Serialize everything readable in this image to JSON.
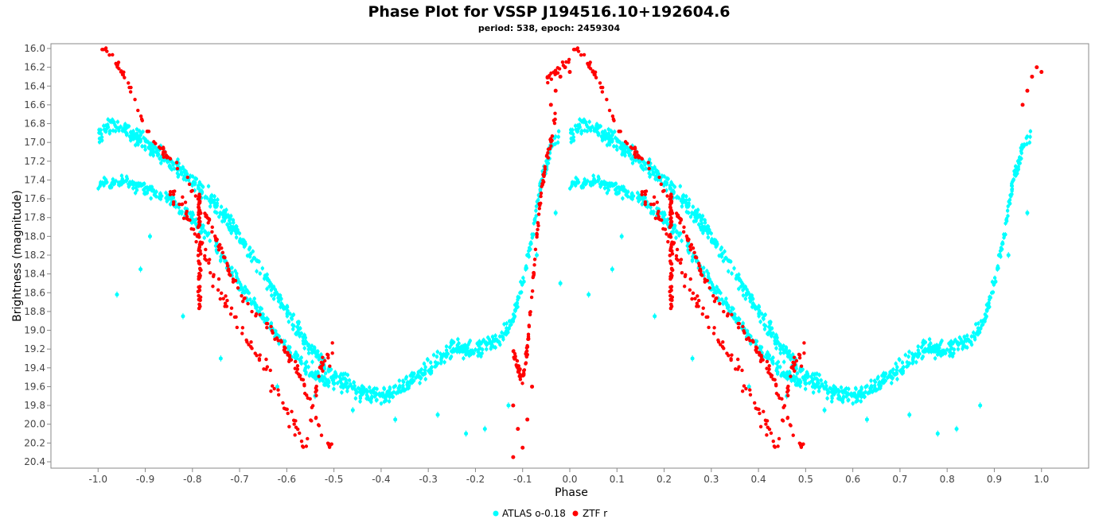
{
  "chart_data": {
    "type": "scatter",
    "title": "Phase Plot for VSSP J194516.10+192604.6",
    "subtitle": "period: 538, epoch: 2459304",
    "xlabel": "Phase",
    "ylabel": "Brightness (magnitude)",
    "xlim": [
      -1.1,
      1.1
    ],
    "ylim": [
      20.4,
      16.0
    ],
    "y_inverted": true,
    "x_ticks": [
      "-1.0",
      "-0.9",
      "-0.8",
      "-0.7",
      "-0.6",
      "-0.5",
      "-0.4",
      "-0.3",
      "-0.2",
      "-0.1",
      "0.0",
      "0.1",
      "0.2",
      "0.3",
      "0.4",
      "0.5",
      "0.6",
      "0.7",
      "0.8",
      "0.9",
      "1.0"
    ],
    "y_ticks": [
      "16.0",
      "16.2",
      "16.4",
      "16.6",
      "16.8",
      "17.0",
      "17.2",
      "17.4",
      "17.6",
      "17.8",
      "18.0",
      "18.2",
      "18.4",
      "18.6",
      "18.8",
      "19.0",
      "19.2",
      "19.4",
      "19.6",
      "19.8",
      "20.0",
      "20.2",
      "20.4"
    ],
    "grid": false,
    "legend_position": "bottom-center",
    "series": [
      {
        "name": "ATLAS o-0.18",
        "color": "#00ffff",
        "marker": "circle",
        "upper_branch": [
          [
            0.0,
            16.95
          ],
          [
            0.03,
            16.8
          ],
          [
            0.07,
            16.9
          ],
          [
            0.1,
            17.0
          ],
          [
            0.15,
            17.2
          ],
          [
            0.2,
            17.4
          ],
          [
            0.25,
            17.65
          ],
          [
            0.3,
            18.0
          ],
          [
            0.35,
            18.4
          ],
          [
            0.4,
            18.8
          ],
          [
            0.45,
            19.2
          ],
          [
            0.5,
            19.5
          ],
          [
            0.55,
            19.65
          ],
          [
            0.6,
            19.7
          ],
          [
            0.65,
            19.6
          ],
          [
            0.7,
            19.4
          ],
          [
            0.75,
            19.2
          ],
          [
            0.8,
            19.2
          ],
          [
            0.85,
            19.1
          ],
          [
            0.88,
            18.9
          ],
          [
            0.9,
            18.5
          ],
          [
            0.92,
            18.0
          ],
          [
            0.94,
            17.4
          ],
          [
            0.96,
            17.05
          ],
          [
            0.98,
            16.9
          ]
        ],
        "lower_branch": [
          [
            0.0,
            17.45
          ],
          [
            0.05,
            17.42
          ],
          [
            0.1,
            17.5
          ],
          [
            0.15,
            17.6
          ],
          [
            0.2,
            17.8
          ],
          [
            0.25,
            18.1
          ],
          [
            0.3,
            18.5
          ],
          [
            0.35,
            18.85
          ],
          [
            0.4,
            19.2
          ],
          [
            0.45,
            19.45
          ],
          [
            0.5,
            19.6
          ]
        ],
        "outliers": [
          [
            0.09,
            18.35
          ],
          [
            0.11,
            18.0
          ],
          [
            -0.02,
            18.5
          ],
          [
            0.04,
            18.62
          ],
          [
            0.18,
            18.85
          ],
          [
            0.26,
            19.3
          ],
          [
            0.38,
            19.6
          ],
          [
            0.46,
            19.7
          ],
          [
            0.54,
            19.85
          ],
          [
            0.63,
            19.95
          ],
          [
            0.72,
            19.9
          ],
          [
            0.78,
            20.1
          ],
          [
            0.82,
            20.05
          ],
          [
            0.87,
            19.8
          ],
          [
            0.93,
            18.2
          ],
          [
            0.97,
            17.75
          ]
        ]
      },
      {
        "name": "ZTF r",
        "color": "#ff0000",
        "marker": "circle",
        "main_branch": [
          [
            -0.05,
            16.35
          ],
          [
            -0.03,
            16.25
          ],
          [
            0.0,
            16.1
          ],
          [
            0.02,
            16.0
          ],
          [
            0.04,
            16.15
          ],
          [
            0.07,
            16.45
          ],
          [
            0.1,
            16.85
          ],
          [
            0.13,
            17.05
          ],
          [
            0.16,
            17.2
          ],
          [
            0.19,
            17.4
          ],
          [
            0.21,
            17.6
          ],
          [
            0.23,
            17.8
          ],
          [
            0.26,
            18.15
          ],
          [
            0.29,
            18.5
          ],
          [
            0.32,
            18.75
          ],
          [
            0.36,
            18.95
          ],
          [
            0.4,
            19.25
          ],
          [
            0.43,
            19.5
          ],
          [
            0.46,
            19.9
          ],
          [
            0.48,
            20.2
          ],
          [
            0.5,
            20.25
          ]
        ],
        "scatter_branch": [
          [
            0.15,
            17.5
          ],
          [
            0.18,
            17.7
          ],
          [
            0.22,
            18.05
          ],
          [
            0.24,
            18.4
          ],
          [
            0.27,
            18.7
          ],
          [
            0.3,
            18.9
          ],
          [
            0.33,
            19.2
          ],
          [
            0.36,
            19.45
          ],
          [
            0.38,
            19.7
          ],
          [
            0.41,
            19.95
          ],
          [
            0.44,
            20.3
          ],
          [
            0.47,
            19.4
          ],
          [
            0.5,
            19.2
          ]
        ],
        "vertical_column": {
          "x": 0.215,
          "y_range": [
            17.55,
            18.8
          ]
        },
        "rise_branch": [
          [
            -0.12,
            19.25
          ],
          [
            -0.1,
            19.55
          ],
          [
            -0.09,
            19.2
          ],
          [
            -0.08,
            18.6
          ],
          [
            -0.07,
            18.0
          ],
          [
            -0.06,
            17.5
          ],
          [
            -0.05,
            17.2
          ],
          [
            -0.04,
            17.0
          ],
          [
            -0.03,
            16.7
          ]
        ],
        "deep_points": [
          [
            -0.12,
            19.8
          ],
          [
            -0.11,
            20.05
          ],
          [
            -0.1,
            20.25
          ],
          [
            -0.09,
            19.95
          ],
          [
            -0.12,
            20.35
          ],
          [
            -0.08,
            19.6
          ]
        ],
        "top_right": [
          [
            0.96,
            16.6
          ],
          [
            0.97,
            16.45
          ],
          [
            0.98,
            16.3
          ],
          [
            0.99,
            16.2
          ],
          [
            1.0,
            16.25
          ]
        ]
      }
    ],
    "legend": [
      {
        "label": "ATLAS o-0.18",
        "color": "#00ffff"
      },
      {
        "label": "ZTF r",
        "color": "#ff0000"
      }
    ]
  }
}
